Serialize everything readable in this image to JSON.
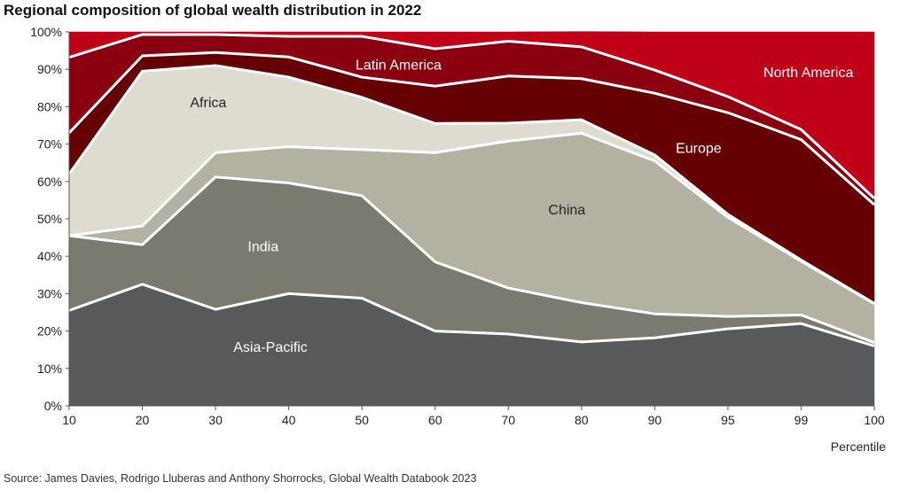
{
  "title": "Regional composition of global wealth distribution in 2022",
  "source": "Source: James Davies, Rodrigo Lluberas and Anthony Shorrocks, Global Wealth Databook 2023",
  "chart_data": {
    "type": "area",
    "stacked": true,
    "title": "Regional composition of global wealth distribution in 2022",
    "xlabel": "Percentile",
    "ylabel": "",
    "x": [
      "10",
      "20",
      "30",
      "40",
      "50",
      "60",
      "70",
      "80",
      "90",
      "95",
      "99",
      "100"
    ],
    "ylim": [
      0,
      100
    ],
    "y_ticks": [
      "0%",
      "10%",
      "20%",
      "30%",
      "40%",
      "50%",
      "60%",
      "70%",
      "80%",
      "90%",
      "100%"
    ],
    "grid": false,
    "series": [
      {
        "name": "Asia-Pacific",
        "color": "#58595b",
        "label_color": "#ffffff",
        "values": [
          25.5,
          32.5,
          25.8,
          30,
          28.8,
          20,
          19.2,
          17.1,
          18.2,
          20.6,
          22,
          16
        ]
      },
      {
        "name": "India",
        "color": "#7a7a70",
        "label_color": "#ffffff",
        "values": [
          20,
          10.6,
          35.4,
          29.6,
          27.4,
          18.5,
          12.3,
          10.5,
          6.4,
          3.3,
          2.3,
          0.9
        ]
      },
      {
        "name": "China",
        "color": "#b3b1a1",
        "label_color": "#222222",
        "values": [
          0,
          5,
          6.5,
          9.7,
          12.3,
          29.2,
          39.3,
          45.3,
          40.9,
          26.5,
          14.4,
          10.4
        ]
      },
      {
        "name": "Africa",
        "color": "#dedbd1",
        "label_color": "#222222",
        "values": [
          16.5,
          41.4,
          23.3,
          18.6,
          14,
          7.8,
          4.8,
          3.6,
          1.6,
          0.8,
          0.3,
          0.1
        ]
      },
      {
        "name": "Europe",
        "color": "#650005",
        "label_color": "#ffffff",
        "values": [
          11,
          4.1,
          3.5,
          5.4,
          5.4,
          10,
          12.6,
          11,
          16.5,
          27.2,
          32.2,
          26.4
        ]
      },
      {
        "name": "Latin America",
        "color": "#8b0010",
        "label_color": "#ffffff",
        "values": [
          20.2,
          5.7,
          4.8,
          5.5,
          10.9,
          10,
          9.3,
          8.5,
          6.2,
          4.3,
          2.7,
          1.7
        ]
      },
      {
        "name": "North America",
        "color": "#bf0016",
        "label_color": "#ffffff",
        "values": [
          6.8,
          0.7,
          0.7,
          1.2,
          1.2,
          4.5,
          2.5,
          4.1,
          10.2,
          17.3,
          26.1,
          44.5
        ]
      }
    ],
    "annotations": [
      "Asia-Pacific",
      "India",
      "China",
      "Africa",
      "Europe",
      "Latin America",
      "North America"
    ]
  }
}
